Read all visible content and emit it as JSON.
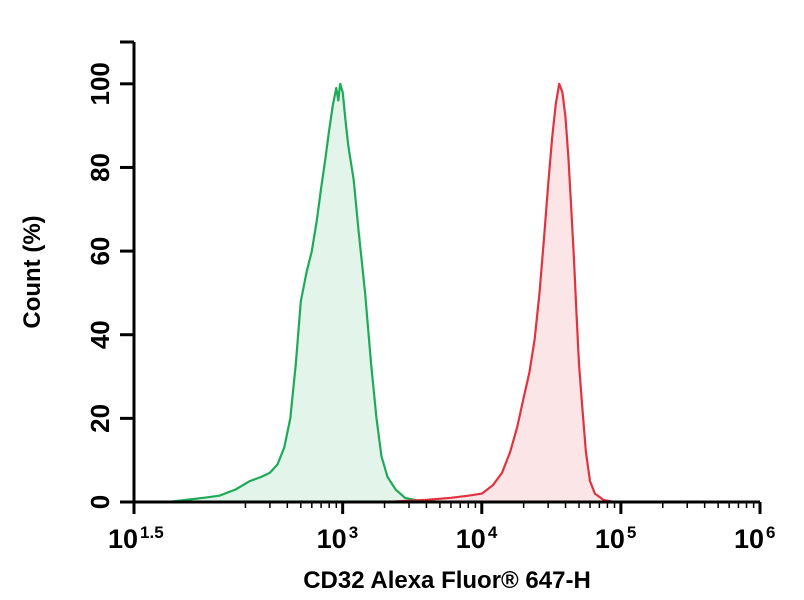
{
  "chart_data": {
    "type": "area",
    "title": "",
    "xlabel": "CD32 Alexa Fluor® 647-H",
    "ylabel": "Count (%)",
    "x_scale": "log10",
    "xlim": [
      31.62,
      1000000
    ],
    "ylim": [
      0,
      110
    ],
    "grid": false,
    "legend": "none",
    "y_ticks": [
      0,
      20,
      40,
      60,
      80,
      100
    ],
    "y_tick_labels": [
      "0",
      "20",
      "40",
      "60",
      "80",
      "100"
    ],
    "x_ticks": [
      31.62,
      1000,
      10000,
      100000,
      1000000
    ],
    "x_tick_labels": [
      {
        "base": "10",
        "exp": "1.5"
      },
      {
        "base": "10",
        "exp": "3"
      },
      {
        "base": "10",
        "exp": "4"
      },
      {
        "base": "10",
        "exp": "5"
      },
      {
        "base": "10",
        "exp": "6"
      }
    ],
    "series": [
      {
        "color": "#1faa57",
        "fill": "#e3f5ea",
        "points": [
          [
            56,
            0
          ],
          [
            75,
            0.5
          ],
          [
            100,
            1
          ],
          [
            130,
            1.5
          ],
          [
            170,
            3
          ],
          [
            215,
            5
          ],
          [
            260,
            6
          ],
          [
            300,
            7
          ],
          [
            340,
            9
          ],
          [
            380,
            13
          ],
          [
            420,
            20
          ],
          [
            460,
            33
          ],
          [
            500,
            48
          ],
          [
            550,
            55
          ],
          [
            600,
            60
          ],
          [
            650,
            67
          ],
          [
            700,
            75
          ],
          [
            750,
            82
          ],
          [
            800,
            89
          ],
          [
            850,
            95
          ],
          [
            900,
            99
          ],
          [
            930,
            96
          ],
          [
            960,
            100
          ],
          [
            1000,
            98
          ],
          [
            1050,
            91
          ],
          [
            1100,
            85
          ],
          [
            1200,
            77
          ],
          [
            1300,
            65
          ],
          [
            1450,
            50
          ],
          [
            1600,
            33
          ],
          [
            1750,
            20
          ],
          [
            1900,
            11
          ],
          [
            2100,
            6
          ],
          [
            2400,
            3
          ],
          [
            2800,
            1
          ],
          [
            3500,
            0.3
          ],
          [
            5000,
            0
          ]
        ]
      },
      {
        "color": "#e0333f",
        "fill": "#fce5e7",
        "points": [
          [
            2000,
            0
          ],
          [
            4000,
            0.5
          ],
          [
            6000,
            1
          ],
          [
            8000,
            1.5
          ],
          [
            10000,
            2
          ],
          [
            12000,
            4
          ],
          [
            14000,
            7
          ],
          [
            16000,
            12
          ],
          [
            18000,
            18
          ],
          [
            20000,
            25
          ],
          [
            22000,
            31
          ],
          [
            24000,
            39
          ],
          [
            26000,
            50
          ],
          [
            28000,
            63
          ],
          [
            30000,
            76
          ],
          [
            32000,
            87
          ],
          [
            34000,
            95
          ],
          [
            36000,
            100
          ],
          [
            38000,
            98
          ],
          [
            40000,
            92
          ],
          [
            42000,
            82
          ],
          [
            44000,
            70
          ],
          [
            46000,
            58
          ],
          [
            48000,
            45
          ],
          [
            50000,
            33
          ],
          [
            53000,
            22
          ],
          [
            56000,
            12
          ],
          [
            60000,
            5
          ],
          [
            65000,
            2
          ],
          [
            75000,
            0.5
          ],
          [
            90000,
            0
          ]
        ]
      }
    ]
  }
}
